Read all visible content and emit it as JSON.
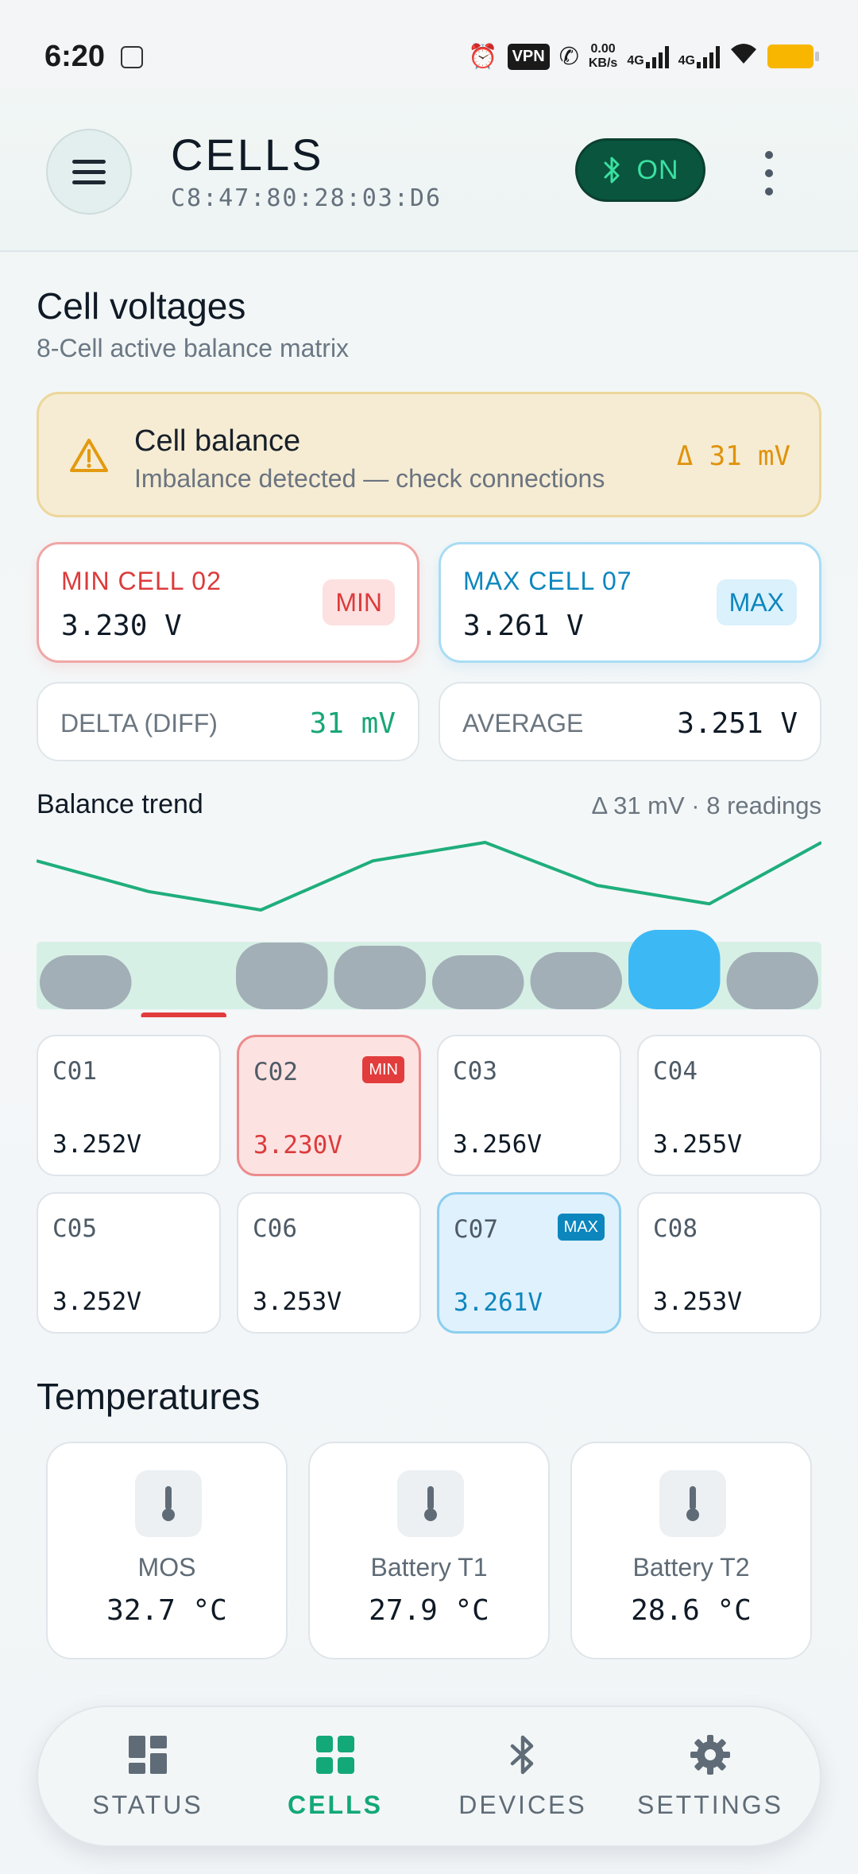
{
  "status_bar": {
    "time": "6:20",
    "vpn": "VPN",
    "speed_value": "0.00",
    "speed_unit": "KB/s",
    "net1": "4G",
    "net2": "4G"
  },
  "header": {
    "title": "CELLS",
    "mac": "C8:47:80:28:03:D6",
    "bluetooth_label": "ON"
  },
  "voltages": {
    "title": "Cell voltages",
    "subtitle": "8-Cell active balance matrix"
  },
  "alert": {
    "title": "Cell balance",
    "message": "Imbalance detected — check connections",
    "delta": "Δ 31 mV"
  },
  "stats": {
    "min_label": "MIN CELL 02",
    "min_value": "3.230 V",
    "min_badge": "MIN",
    "max_label": "MAX CELL 07",
    "max_value": "3.261 V",
    "max_badge": "MAX",
    "delta_label": "DELTA (DIFF)",
    "delta_value": "31 mV",
    "average_label": "AVERAGE",
    "average_value": "3.251 V"
  },
  "trend": {
    "title": "Balance trend",
    "meta": "Δ 31 mV · 8 readings"
  },
  "chart_data": {
    "type": "line",
    "title": "Balance trend",
    "x": [
      1,
      2,
      3,
      4,
      5,
      6,
      7,
      8
    ],
    "series": [
      {
        "values": [
          3.252,
          3.247,
          3.244,
          3.252,
          3.255,
          3.248,
          3.245,
          3.255
        ]
      }
    ],
    "bar_values": [
      3.252,
      3.23,
      3.256,
      3.255,
      3.252,
      3.253,
      3.261,
      3.253
    ],
    "min_index": 1,
    "max_index": 6,
    "colors": {
      "line": "#1fae7c",
      "bar": "#a3afb7",
      "max_bar": "#3cb8f5",
      "min_marker": "#e23c3c",
      "band": "#d7f0e6"
    }
  },
  "cells": [
    {
      "id": "C01",
      "value": "3.252V",
      "state": "normal",
      "tag": ""
    },
    {
      "id": "C02",
      "value": "3.230V",
      "state": "min",
      "tag": "MIN"
    },
    {
      "id": "C03",
      "value": "3.256V",
      "state": "normal",
      "tag": ""
    },
    {
      "id": "C04",
      "value": "3.255V",
      "state": "normal",
      "tag": ""
    },
    {
      "id": "C05",
      "value": "3.252V",
      "state": "normal",
      "tag": ""
    },
    {
      "id": "C06",
      "value": "3.253V",
      "state": "normal",
      "tag": ""
    },
    {
      "id": "C07",
      "value": "3.261V",
      "state": "max",
      "tag": "MAX"
    },
    {
      "id": "C08",
      "value": "3.253V",
      "state": "normal",
      "tag": ""
    }
  ],
  "temperatures": {
    "title": "Temperatures",
    "items": [
      {
        "label": "MOS",
        "value": "32.7 °C"
      },
      {
        "label": "Battery T1",
        "value": "27.9 °C"
      },
      {
        "label": "Battery T2",
        "value": "28.6 °C"
      }
    ]
  },
  "nav": {
    "items": [
      {
        "label": "STATUS",
        "icon": "dashboard-icon",
        "active": false
      },
      {
        "label": "CELLS",
        "icon": "grid-icon",
        "active": true
      },
      {
        "label": "DEVICES",
        "icon": "bluetooth-icon",
        "active": false
      },
      {
        "label": "SETTINGS",
        "icon": "gear-icon",
        "active": false
      }
    ]
  }
}
